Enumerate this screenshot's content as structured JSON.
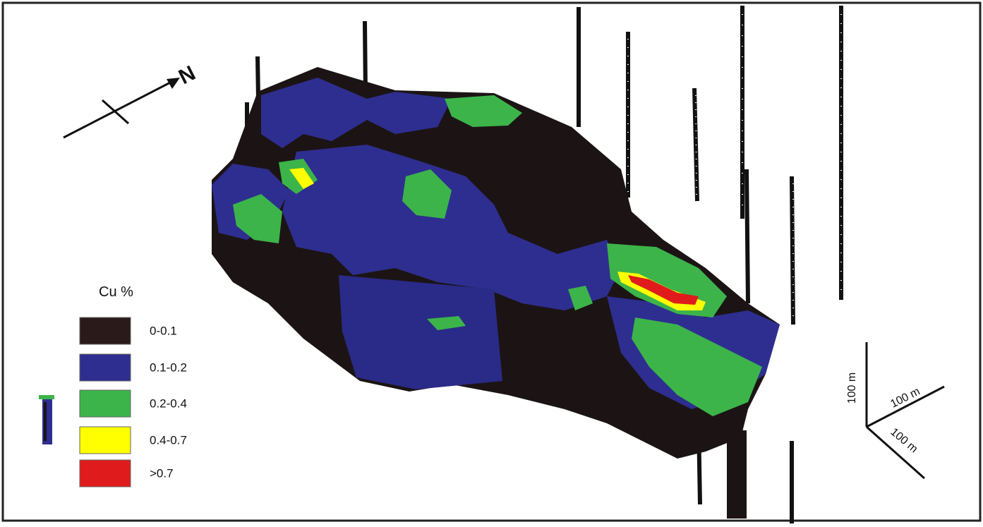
{
  "legend": {
    "title": "Cu %",
    "items": [
      {
        "label": "0-0.1",
        "color": "#2a1a1a"
      },
      {
        "label": "0.1-0.2",
        "color": "#2e2e90"
      },
      {
        "label": "0.2-0.4",
        "color": "#3cb44a"
      },
      {
        "label": "0.4-0.7",
        "color": "#ffff00"
      },
      {
        "label": ">0.7",
        "color": "#e01b1b"
      }
    ]
  },
  "north_arrow": {
    "label": "N"
  },
  "scale_bar": {
    "vertical": "100 m",
    "east": "100 m",
    "south": "100 m"
  }
}
